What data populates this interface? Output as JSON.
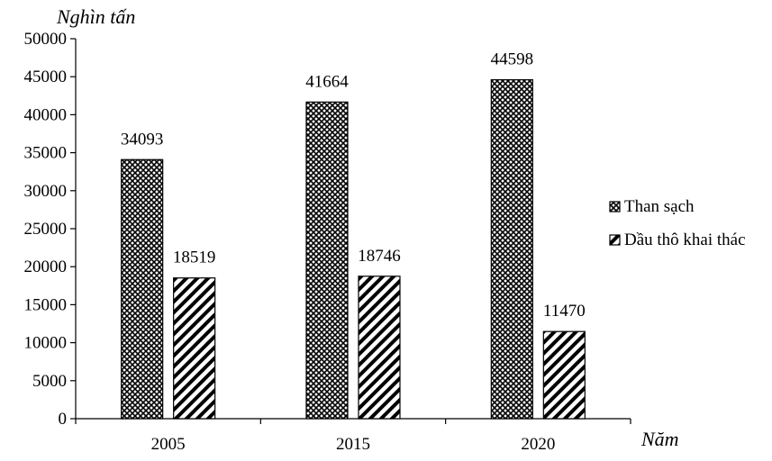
{
  "chart_data": {
    "type": "bar",
    "categories": [
      "2005",
      "2015",
      "2020"
    ],
    "series": [
      {
        "name": "Than sạch",
        "values": [
          34093,
          41664,
          44598
        ],
        "pattern": "crosshatch"
      },
      {
        "name": "Dầu thô khai thác",
        "values": [
          18519,
          18746,
          11470
        ],
        "pattern": "diagonal"
      }
    ],
    "title": "",
    "ylabel": "Nghìn tấn",
    "xlabel": "Năm",
    "ylim": [
      0,
      50000
    ],
    "yticks": [
      0,
      5000,
      10000,
      15000,
      20000,
      25000,
      30000,
      35000,
      40000,
      45000,
      50000
    ],
    "grid": false,
    "legend_position": "right",
    "data_labels": true
  }
}
